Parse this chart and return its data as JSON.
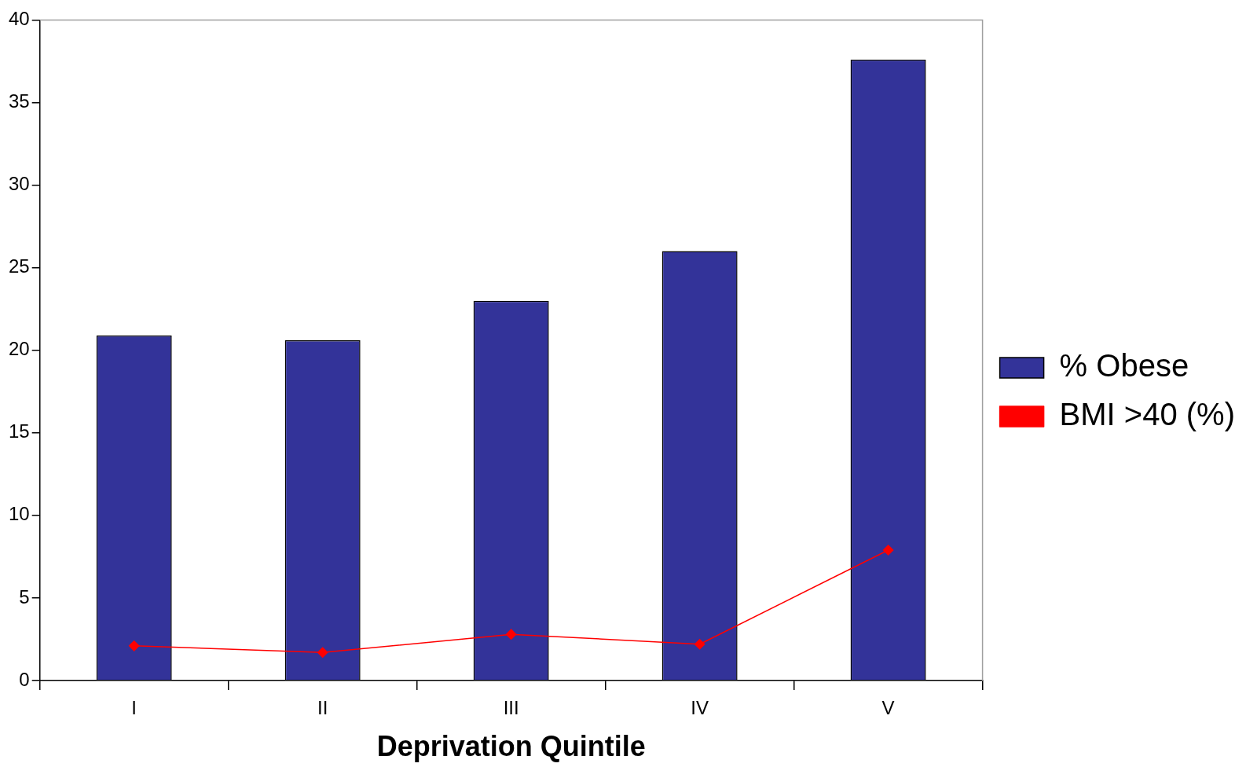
{
  "chart_data": {
    "type": "bar",
    "xlabel": "Deprivation Quintile",
    "categories": [
      "I",
      "II",
      "III",
      "IV",
      "V"
    ],
    "series": [
      {
        "name": "% Obese",
        "color": "#333399",
        "values": [
          20.9,
          20.6,
          23.0,
          26.0,
          37.6
        ]
      },
      {
        "name": "BMI >40 (%)",
        "type": "line",
        "color": "#ff0000",
        "marker": "diamond",
        "values": [
          2.1,
          1.7,
          2.8,
          2.2,
          7.9
        ]
      }
    ],
    "ylim": [
      0,
      40
    ],
    "yticks": [
      0,
      5,
      10,
      15,
      20,
      25,
      30,
      35,
      40
    ],
    "grid": false,
    "legend": "right"
  }
}
